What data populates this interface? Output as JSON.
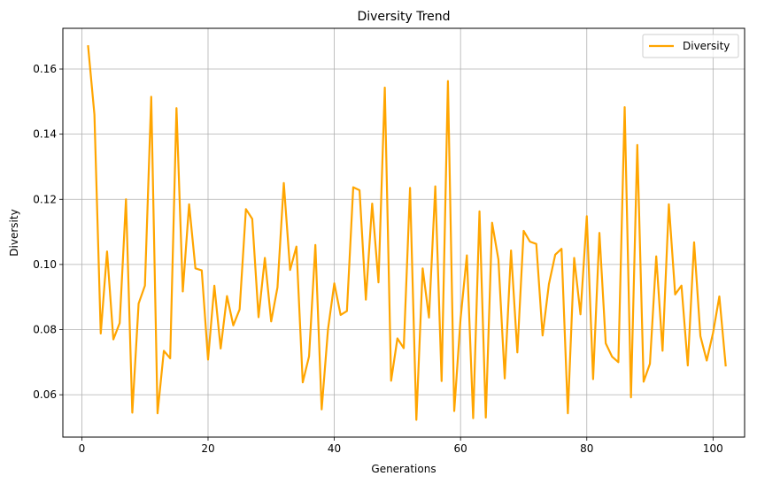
{
  "chart_data": {
    "type": "line",
    "title": "Diversity Trend",
    "xlabel": "Generations",
    "ylabel": "Diversity",
    "xlim": [
      -3,
      105
    ],
    "ylim": [
      0.047,
      0.1725
    ],
    "xticks": [
      0,
      20,
      40,
      60,
      80,
      100
    ],
    "yticks": [
      0.06,
      0.08,
      0.1,
      0.12,
      0.14,
      0.16
    ],
    "ytick_labels": [
      "0.06",
      "0.08",
      "0.10",
      "0.12",
      "0.14",
      "0.16"
    ],
    "grid": true,
    "legend_position": "top-right",
    "colors": {
      "line": "#ffa500",
      "grid": "#b0b0b0"
    },
    "series": [
      {
        "name": "Diversity",
        "x": [
          1,
          2,
          3,
          4,
          5,
          6,
          7,
          8,
          9,
          10,
          11,
          12,
          13,
          14,
          15,
          16,
          17,
          18,
          19,
          20,
          21,
          22,
          23,
          24,
          25,
          26,
          27,
          28,
          29,
          30,
          31,
          32,
          33,
          34,
          35,
          36,
          37,
          38,
          39,
          40,
          41,
          42,
          43,
          44,
          45,
          46,
          47,
          48,
          49,
          50,
          51,
          52,
          53,
          54,
          55,
          56,
          57,
          58,
          59,
          60,
          61,
          62,
          63,
          64,
          65,
          66,
          67,
          68,
          69,
          70,
          71,
          72,
          73,
          74,
          75,
          76,
          77,
          78,
          79,
          80,
          81,
          82,
          83,
          84,
          85,
          86,
          87,
          88,
          89,
          90,
          91,
          92,
          93,
          94,
          95,
          96,
          97,
          98,
          99,
          100,
          101,
          102
        ],
        "values": [
          0.167,
          0.146,
          0.0788,
          0.104,
          0.077,
          0.082,
          0.12,
          0.0545,
          0.088,
          0.0935,
          0.1515,
          0.0543,
          0.0735,
          0.0712,
          0.148,
          0.0917,
          0.1185,
          0.0988,
          0.0982,
          0.0708,
          0.0935,
          0.0742,
          0.0903,
          0.0813,
          0.0862,
          0.117,
          0.114,
          0.0838,
          0.102,
          0.0825,
          0.093,
          0.125,
          0.0983,
          0.1055,
          0.0638,
          0.0718,
          0.106,
          0.0555,
          0.08,
          0.0942,
          0.0845,
          0.0857,
          0.1237,
          0.1228,
          0.0892,
          0.1187,
          0.0945,
          0.1543,
          0.0643,
          0.0773,
          0.0743,
          0.1235,
          0.0523,
          0.0988,
          0.0837,
          0.124,
          0.0642,
          0.1563,
          0.055,
          0.0833,
          0.1028,
          0.0528,
          0.1163,
          0.053,
          0.1128,
          0.1015,
          0.065,
          0.1043,
          0.073,
          0.1103,
          0.107,
          0.1063,
          0.0782,
          0.094,
          0.103,
          0.1048,
          0.0543,
          0.102,
          0.0847,
          0.1148,
          0.0648,
          0.1097,
          0.0758,
          0.0717,
          0.07,
          0.1483,
          0.0592,
          0.1367,
          0.064,
          0.0695,
          0.1025,
          0.0735,
          0.1185,
          0.0908,
          0.0935,
          0.069,
          0.1068,
          0.078,
          0.0705,
          0.079,
          0.0902,
          0.069
        ]
      }
    ]
  }
}
